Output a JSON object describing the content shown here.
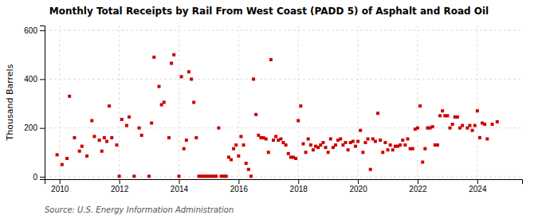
{
  "chart_data": {
    "type": "scatter",
    "title": "Monthly Total Receipts by Rail From West Coast (PADD 5) of Asphalt and Road Oil",
    "ylabel": "Thousand Barrels",
    "annotations": [
      "Source: U.S. Energy Information Administration"
    ],
    "color": "#cc0000",
    "marker": "square",
    "grid": true,
    "xlim": [
      2009.5,
      2025.5
    ],
    "ylim": [
      -10,
      620
    ],
    "xticks": [
      2010,
      2012,
      2014,
      2016,
      2018,
      2020,
      2022,
      2024
    ],
    "yticks": [
      0,
      200,
      400,
      600
    ],
    "x": [
      2009.917,
      2010.083,
      2010.25,
      2010.333,
      2010.5,
      2010.667,
      2010.75,
      2010.917,
      2011.083,
      2011.167,
      2011.333,
      2011.417,
      2011.5,
      2011.583,
      2011.667,
      2011.75,
      2011.917,
      2012.0,
      2012.083,
      2012.25,
      2012.333,
      2012.5,
      2012.667,
      2012.75,
      2013.0,
      2013.083,
      2013.167,
      2013.333,
      2013.417,
      2013.5,
      2013.667,
      2013.75,
      2013.833,
      2014.0,
      2014.083,
      2014.167,
      2014.25,
      2014.333,
      2014.417,
      2014.5,
      2014.583,
      2014.667,
      2014.75,
      2014.833,
      2014.917,
      2015.0,
      2015.083,
      2015.167,
      2015.25,
      2015.333,
      2015.417,
      2015.5,
      2015.583,
      2015.667,
      2015.75,
      2015.833,
      2015.917,
      2016.0,
      2016.083,
      2016.167,
      2016.25,
      2016.333,
      2016.417,
      2016.5,
      2016.583,
      2016.667,
      2016.75,
      2016.833,
      2016.917,
      2017.0,
      2017.083,
      2017.167,
      2017.25,
      2017.333,
      2017.417,
      2017.5,
      2017.583,
      2017.667,
      2017.75,
      2017.833,
      2017.917,
      2018.0,
      2018.083,
      2018.167,
      2018.25,
      2018.333,
      2018.417,
      2018.5,
      2018.583,
      2018.667,
      2018.75,
      2018.833,
      2018.917,
      2019.0,
      2019.083,
      2019.167,
      2019.25,
      2019.333,
      2019.417,
      2019.5,
      2019.583,
      2019.667,
      2019.75,
      2019.833,
      2019.917,
      2020.0,
      2020.083,
      2020.167,
      2020.25,
      2020.333,
      2020.417,
      2020.5,
      2020.583,
      2020.667,
      2020.75,
      2020.833,
      2020.917,
      2021.0,
      2021.083,
      2021.167,
      2021.25,
      2021.333,
      2021.417,
      2021.5,
      2021.583,
      2021.667,
      2021.75,
      2021.833,
      2021.917,
      2022.0,
      2022.083,
      2022.167,
      2022.25,
      2022.333,
      2022.417,
      2022.5,
      2022.583,
      2022.667,
      2022.75,
      2022.833,
      2022.917,
      2023.0,
      2023.083,
      2023.167,
      2023.25,
      2023.333,
      2023.417,
      2023.5,
      2023.667,
      2023.75,
      2023.833,
      2023.917,
      2024.0,
      2024.083,
      2024.167,
      2024.25,
      2024.333,
      2024.5,
      2024.667
    ],
    "values": [
      90,
      50,
      75,
      330,
      160,
      105,
      125,
      85,
      230,
      165,
      150,
      105,
      160,
      145,
      290,
      160,
      130,
      2,
      235,
      210,
      245,
      2,
      200,
      170,
      2,
      220,
      490,
      370,
      295,
      305,
      160,
      465,
      500,
      2,
      410,
      115,
      150,
      430,
      400,
      305,
      160,
      2,
      2,
      2,
      2,
      2,
      2,
      2,
      2,
      200,
      2,
      2,
      2,
      80,
      70,
      115,
      130,
      85,
      165,
      130,
      55,
      30,
      2,
      400,
      255,
      170,
      160,
      160,
      155,
      100,
      480,
      150,
      165,
      150,
      155,
      140,
      130,
      95,
      80,
      80,
      75,
      230,
      290,
      135,
      100,
      155,
      130,
      110,
      125,
      120,
      130,
      140,
      120,
      100,
      155,
      120,
      130,
      150,
      155,
      130,
      140,
      110,
      140,
      145,
      125,
      145,
      190,
      100,
      140,
      155,
      30,
      155,
      145,
      260,
      150,
      100,
      140,
      110,
      130,
      110,
      125,
      125,
      130,
      150,
      130,
      155,
      115,
      115,
      195,
      200,
      290,
      60,
      115,
      200,
      200,
      205,
      130,
      130,
      250,
      270,
      250,
      250,
      200,
      215,
      245,
      245,
      200,
      210,
      200,
      210,
      190,
      210,
      270,
      160,
      220,
      215,
      155,
      215,
      225
    ]
  }
}
